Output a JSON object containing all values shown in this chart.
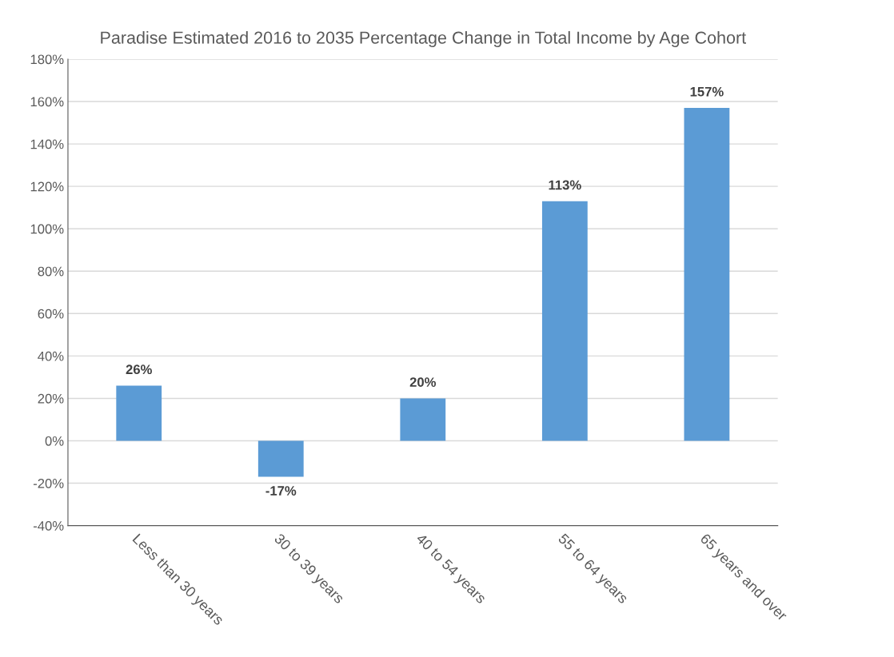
{
  "chart_data": {
    "type": "bar",
    "title": "Paradise Estimated 2016 to 2035 Percentage Change in Total Income by Age Cohort",
    "categories": [
      "Less than 30 years",
      "30 to 39 years",
      "40 to 54 years",
      "55 to 64 years",
      "65 years and over"
    ],
    "values": [
      26,
      -17,
      20,
      113,
      157
    ],
    "value_labels": [
      "26%",
      "-17%",
      "20%",
      "113%",
      "157%"
    ],
    "color": "#5b9bd5",
    "ylim": [
      -40,
      180
    ],
    "yticks": [
      {
        "value": -40,
        "label": "-40%"
      },
      {
        "value": -20,
        "label": "-20%"
      },
      {
        "value": 0,
        "label": "0%"
      },
      {
        "value": 20,
        "label": "20%"
      },
      {
        "value": 40,
        "label": "40%"
      },
      {
        "value": 60,
        "label": "60%"
      },
      {
        "value": 80,
        "label": "80%"
      },
      {
        "value": 100,
        "label": "100%"
      },
      {
        "value": 120,
        "label": "120%"
      },
      {
        "value": 140,
        "label": "140%"
      },
      {
        "value": 160,
        "label": "160%"
      },
      {
        "value": 180,
        "label": "180%"
      }
    ],
    "grid": "y"
  }
}
